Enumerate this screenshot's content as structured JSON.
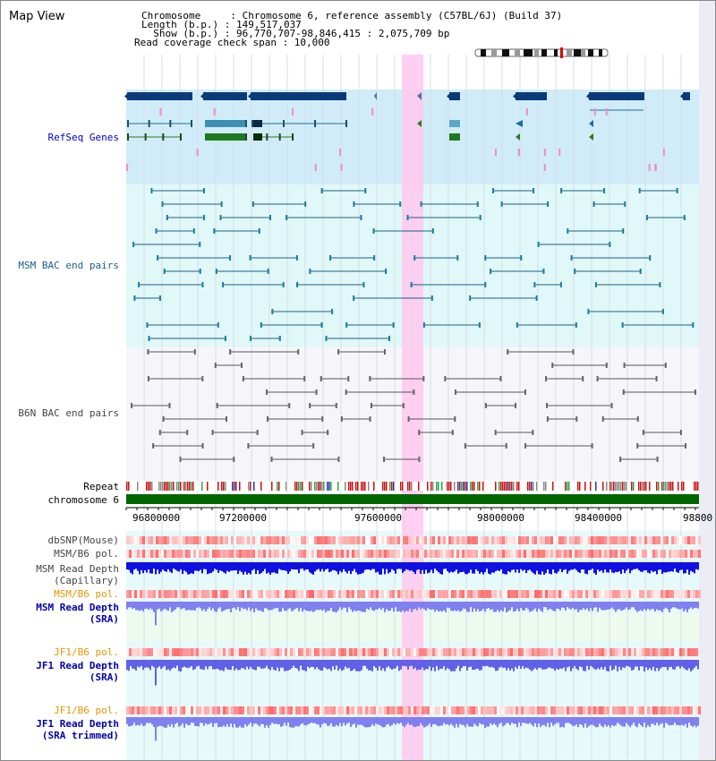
{
  "title": "Map View",
  "info": {
    "lines": [
      "Chromosome     : Chromosome 6, reference assembly (C57BL/6J) (Build 37)",
      "Length (b.p.) : 149,517,037",
      "  Show (b.p.) : 96,770,707-98,846,415 : 2,075,709 bp",
      "Read coverage check span : 10,000"
    ]
  },
  "axis": {
    "ticks": [
      "96800000",
      "97200000",
      "97600000",
      "98000000",
      "98400000",
      "98800"
    ]
  },
  "tracks": {
    "refseq": "RefSeq Genes",
    "msm_bac": "MSM BAC end pairs",
    "b6n_bac": "B6N BAC end pairs",
    "repeat": "Repeat",
    "chromosome": "chromosome 6",
    "dbsnp": "dbSNP(Mouse)",
    "msm_b6_pol_1": "MSM/B6 pol.",
    "msm_depth_cap_1": "MSM Read Depth",
    "msm_depth_cap_2": "(Capillary)",
    "msm_b6_pol_2": "MSM/B6 pol.",
    "msm_depth_sra_1": "MSM Read Depth",
    "msm_depth_sra_2": "(SRA)",
    "jf1_b6_pol_1": "JF1/B6 pol.",
    "jf1_depth_sra_1": "JF1 Read Depth",
    "jf1_depth_sra_2": "(SRA)",
    "jf1_b6_pol_2": "JF1/B6 pol.",
    "jf1_depth_trim_1": "JF1 Read Depth",
    "jf1_depth_trim_2": "(SRA trimmed)"
  },
  "colors": {
    "refseq_label": "#0000cc",
    "msm_label": "#1a5f8c",
    "b6n_label": "#444444",
    "orange_label": "#e69500",
    "blue_label": "#0000aa",
    "highlight": "#ffc8ee",
    "gene_band": "#d0ecf8",
    "msm_band": "#e0f8f8",
    "lower_band": "#e6fafa",
    "chromosome": "#006600"
  }
}
